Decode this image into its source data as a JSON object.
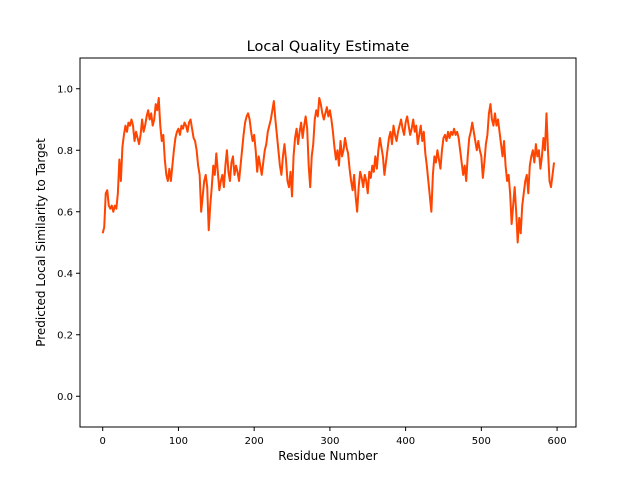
{
  "chart_data": {
    "type": "line",
    "title": "Local Quality Estimate",
    "xlabel": "Residue Number",
    "ylabel": "Predicted Local Similarity to Target",
    "xlim": [
      -30,
      625
    ],
    "ylim": [
      -0.1,
      1.1
    ],
    "xticks": [
      0,
      100,
      200,
      300,
      400,
      500,
      600
    ],
    "yticks": [
      0.0,
      0.2,
      0.4,
      0.6,
      0.8,
      1.0
    ],
    "xtick_labels": [
      "0",
      "100",
      "200",
      "300",
      "400",
      "500",
      "600"
    ],
    "ytick_labels": [
      "0.0",
      "0.2",
      "0.4",
      "0.6",
      "0.8",
      "1.0"
    ],
    "grid": false,
    "series": [
      {
        "color": "#ff4500",
        "points": [
          [
            0,
            0.53
          ],
          [
            2,
            0.55
          ],
          [
            4,
            0.66
          ],
          [
            6,
            0.67
          ],
          [
            8,
            0.62
          ],
          [
            10,
            0.61
          ],
          [
            12,
            0.62
          ],
          [
            14,
            0.6
          ],
          [
            16,
            0.62
          ],
          [
            18,
            0.61
          ],
          [
            20,
            0.66
          ],
          [
            22,
            0.77
          ],
          [
            24,
            0.7
          ],
          [
            26,
            0.81
          ],
          [
            28,
            0.85
          ],
          [
            30,
            0.88
          ],
          [
            32,
            0.86
          ],
          [
            34,
            0.89
          ],
          [
            36,
            0.88
          ],
          [
            38,
            0.9
          ],
          [
            40,
            0.88
          ],
          [
            42,
            0.83
          ],
          [
            44,
            0.86
          ],
          [
            46,
            0.84
          ],
          [
            48,
            0.82
          ],
          [
            50,
            0.85
          ],
          [
            52,
            0.9
          ],
          [
            54,
            0.86
          ],
          [
            56,
            0.88
          ],
          [
            58,
            0.91
          ],
          [
            60,
            0.93
          ],
          [
            62,
            0.9
          ],
          [
            64,
            0.92
          ],
          [
            66,
            0.88
          ],
          [
            68,
            0.9
          ],
          [
            70,
            0.95
          ],
          [
            72,
            0.93
          ],
          [
            74,
            0.97
          ],
          [
            76,
            0.88
          ],
          [
            78,
            0.83
          ],
          [
            80,
            0.85
          ],
          [
            82,
            0.77
          ],
          [
            84,
            0.72
          ],
          [
            86,
            0.7
          ],
          [
            88,
            0.74
          ],
          [
            90,
            0.7
          ],
          [
            92,
            0.75
          ],
          [
            94,
            0.8
          ],
          [
            96,
            0.84
          ],
          [
            98,
            0.86
          ],
          [
            100,
            0.87
          ],
          [
            102,
            0.85
          ],
          [
            104,
            0.88
          ],
          [
            106,
            0.87
          ],
          [
            108,
            0.89
          ],
          [
            110,
            0.88
          ],
          [
            112,
            0.86
          ],
          [
            114,
            0.89
          ],
          [
            116,
            0.9
          ],
          [
            118,
            0.87
          ],
          [
            120,
            0.84
          ],
          [
            122,
            0.83
          ],
          [
            124,
            0.8
          ],
          [
            126,
            0.75
          ],
          [
            128,
            0.72
          ],
          [
            130,
            0.6
          ],
          [
            132,
            0.65
          ],
          [
            134,
            0.7
          ],
          [
            136,
            0.72
          ],
          [
            138,
            0.68
          ],
          [
            140,
            0.54
          ],
          [
            142,
            0.62
          ],
          [
            144,
            0.68
          ],
          [
            146,
            0.75
          ],
          [
            148,
            0.72
          ],
          [
            150,
            0.79
          ],
          [
            152,
            0.73
          ],
          [
            154,
            0.67
          ],
          [
            156,
            0.7
          ],
          [
            158,
            0.72
          ],
          [
            160,
            0.68
          ],
          [
            162,
            0.75
          ],
          [
            164,
            0.8
          ],
          [
            166,
            0.73
          ],
          [
            168,
            0.7
          ],
          [
            170,
            0.76
          ],
          [
            172,
            0.78
          ],
          [
            174,
            0.72
          ],
          [
            176,
            0.75
          ],
          [
            178,
            0.73
          ],
          [
            180,
            0.7
          ],
          [
            182,
            0.75
          ],
          [
            184,
            0.8
          ],
          [
            186,
            0.85
          ],
          [
            188,
            0.89
          ],
          [
            190,
            0.91
          ],
          [
            192,
            0.92
          ],
          [
            194,
            0.9
          ],
          [
            196,
            0.86
          ],
          [
            198,
            0.83
          ],
          [
            200,
            0.85
          ],
          [
            202,
            0.8
          ],
          [
            204,
            0.73
          ],
          [
            206,
            0.78
          ],
          [
            208,
            0.75
          ],
          [
            210,
            0.72
          ],
          [
            212,
            0.76
          ],
          [
            214,
            0.8
          ],
          [
            216,
            0.82
          ],
          [
            218,
            0.86
          ],
          [
            220,
            0.88
          ],
          [
            222,
            0.9
          ],
          [
            224,
            0.93
          ],
          [
            226,
            0.96
          ],
          [
            228,
            0.9
          ],
          [
            230,
            0.85
          ],
          [
            232,
            0.8
          ],
          [
            234,
            0.75
          ],
          [
            236,
            0.72
          ],
          [
            238,
            0.78
          ],
          [
            240,
            0.82
          ],
          [
            242,
            0.77
          ],
          [
            244,
            0.7
          ],
          [
            246,
            0.68
          ],
          [
            248,
            0.73
          ],
          [
            250,
            0.65
          ],
          [
            252,
            0.78
          ],
          [
            254,
            0.84
          ],
          [
            256,
            0.87
          ],
          [
            258,
            0.82
          ],
          [
            260,
            0.86
          ],
          [
            262,
            0.89
          ],
          [
            264,
            0.84
          ],
          [
            266,
            0.88
          ],
          [
            268,
            0.91
          ],
          [
            270,
            0.87
          ],
          [
            272,
            0.75
          ],
          [
            274,
            0.68
          ],
          [
            276,
            0.78
          ],
          [
            278,
            0.82
          ],
          [
            280,
            0.9
          ],
          [
            282,
            0.93
          ],
          [
            284,
            0.91
          ],
          [
            286,
            0.97
          ],
          [
            288,
            0.95
          ],
          [
            290,
            0.92
          ],
          [
            292,
            0.9
          ],
          [
            294,
            0.92
          ],
          [
            296,
            0.94
          ],
          [
            298,
            0.91
          ],
          [
            300,
            0.93
          ],
          [
            302,
            0.9
          ],
          [
            304,
            0.86
          ],
          [
            306,
            0.81
          ],
          [
            308,
            0.77
          ],
          [
            310,
            0.8
          ],
          [
            312,
            0.75
          ],
          [
            314,
            0.83
          ],
          [
            316,
            0.78
          ],
          [
            318,
            0.8
          ],
          [
            320,
            0.84
          ],
          [
            322,
            0.81
          ],
          [
            324,
            0.79
          ],
          [
            326,
            0.74
          ],
          [
            328,
            0.7
          ],
          [
            330,
            0.67
          ],
          [
            332,
            0.72
          ],
          [
            334,
            0.65
          ],
          [
            336,
            0.6
          ],
          [
            338,
            0.68
          ],
          [
            340,
            0.73
          ],
          [
            342,
            0.71
          ],
          [
            344,
            0.68
          ],
          [
            346,
            0.72
          ],
          [
            348,
            0.7
          ],
          [
            350,
            0.66
          ],
          [
            352,
            0.73
          ],
          [
            354,
            0.71
          ],
          [
            356,
            0.75
          ],
          [
            358,
            0.73
          ],
          [
            360,
            0.78
          ],
          [
            362,
            0.74
          ],
          [
            364,
            0.8
          ],
          [
            366,
            0.84
          ],
          [
            368,
            0.81
          ],
          [
            370,
            0.78
          ],
          [
            372,
            0.72
          ],
          [
            374,
            0.76
          ],
          [
            376,
            0.8
          ],
          [
            378,
            0.84
          ],
          [
            380,
            0.86
          ],
          [
            382,
            0.82
          ],
          [
            384,
            0.88
          ],
          [
            386,
            0.85
          ],
          [
            388,
            0.83
          ],
          [
            390,
            0.86
          ],
          [
            392,
            0.88
          ],
          [
            394,
            0.9
          ],
          [
            396,
            0.87
          ],
          [
            398,
            0.85
          ],
          [
            400,
            0.89
          ],
          [
            402,
            0.91
          ],
          [
            404,
            0.88
          ],
          [
            406,
            0.85
          ],
          [
            408,
            0.87
          ],
          [
            410,
            0.9
          ],
          [
            412,
            0.86
          ],
          [
            414,
            0.88
          ],
          [
            416,
            0.82
          ],
          [
            418,
            0.85
          ],
          [
            420,
            0.88
          ],
          [
            422,
            0.83
          ],
          [
            424,
            0.86
          ],
          [
            426,
            0.79
          ],
          [
            428,
            0.75
          ],
          [
            430,
            0.7
          ],
          [
            432,
            0.65
          ],
          [
            434,
            0.6
          ],
          [
            436,
            0.72
          ],
          [
            438,
            0.78
          ],
          [
            440,
            0.76
          ],
          [
            442,
            0.8
          ],
          [
            444,
            0.77
          ],
          [
            446,
            0.74
          ],
          [
            448,
            0.8
          ],
          [
            450,
            0.84
          ],
          [
            452,
            0.85
          ],
          [
            454,
            0.83
          ],
          [
            456,
            0.86
          ],
          [
            458,
            0.84
          ],
          [
            460,
            0.86
          ],
          [
            462,
            0.85
          ],
          [
            464,
            0.87
          ],
          [
            466,
            0.85
          ],
          [
            468,
            0.86
          ],
          [
            470,
            0.84
          ],
          [
            472,
            0.8
          ],
          [
            474,
            0.76
          ],
          [
            476,
            0.72
          ],
          [
            478,
            0.75
          ],
          [
            480,
            0.7
          ],
          [
            482,
            0.78
          ],
          [
            484,
            0.84
          ],
          [
            486,
            0.86
          ],
          [
            488,
            0.89
          ],
          [
            490,
            0.86
          ],
          [
            492,
            0.83
          ],
          [
            494,
            0.8
          ],
          [
            496,
            0.83
          ],
          [
            498,
            0.8
          ],
          [
            500,
            0.78
          ],
          [
            502,
            0.71
          ],
          [
            504,
            0.76
          ],
          [
            506,
            0.82
          ],
          [
            508,
            0.85
          ],
          [
            510,
            0.92
          ],
          [
            512,
            0.95
          ],
          [
            514,
            0.9
          ],
          [
            516,
            0.88
          ],
          [
            518,
            0.92
          ],
          [
            520,
            0.88
          ],
          [
            522,
            0.9
          ],
          [
            524,
            0.86
          ],
          [
            526,
            0.82
          ],
          [
            528,
            0.78
          ],
          [
            530,
            0.83
          ],
          [
            532,
            0.75
          ],
          [
            534,
            0.7
          ],
          [
            536,
            0.72
          ],
          [
            538,
            0.66
          ],
          [
            540,
            0.56
          ],
          [
            542,
            0.62
          ],
          [
            544,
            0.68
          ],
          [
            546,
            0.6
          ],
          [
            548,
            0.5
          ],
          [
            550,
            0.58
          ],
          [
            552,
            0.53
          ],
          [
            554,
            0.62
          ],
          [
            556,
            0.66
          ],
          [
            558,
            0.7
          ],
          [
            560,
            0.72
          ],
          [
            562,
            0.66
          ],
          [
            564,
            0.75
          ],
          [
            566,
            0.78
          ],
          [
            568,
            0.8
          ],
          [
            570,
            0.76
          ],
          [
            572,
            0.82
          ],
          [
            574,
            0.78
          ],
          [
            576,
            0.8
          ],
          [
            578,
            0.74
          ],
          [
            580,
            0.78
          ],
          [
            582,
            0.84
          ],
          [
            584,
            0.8
          ],
          [
            586,
            0.92
          ],
          [
            588,
            0.8
          ],
          [
            590,
            0.7
          ],
          [
            592,
            0.68
          ],
          [
            594,
            0.72
          ],
          [
            596,
            0.76
          ]
        ]
      }
    ]
  }
}
